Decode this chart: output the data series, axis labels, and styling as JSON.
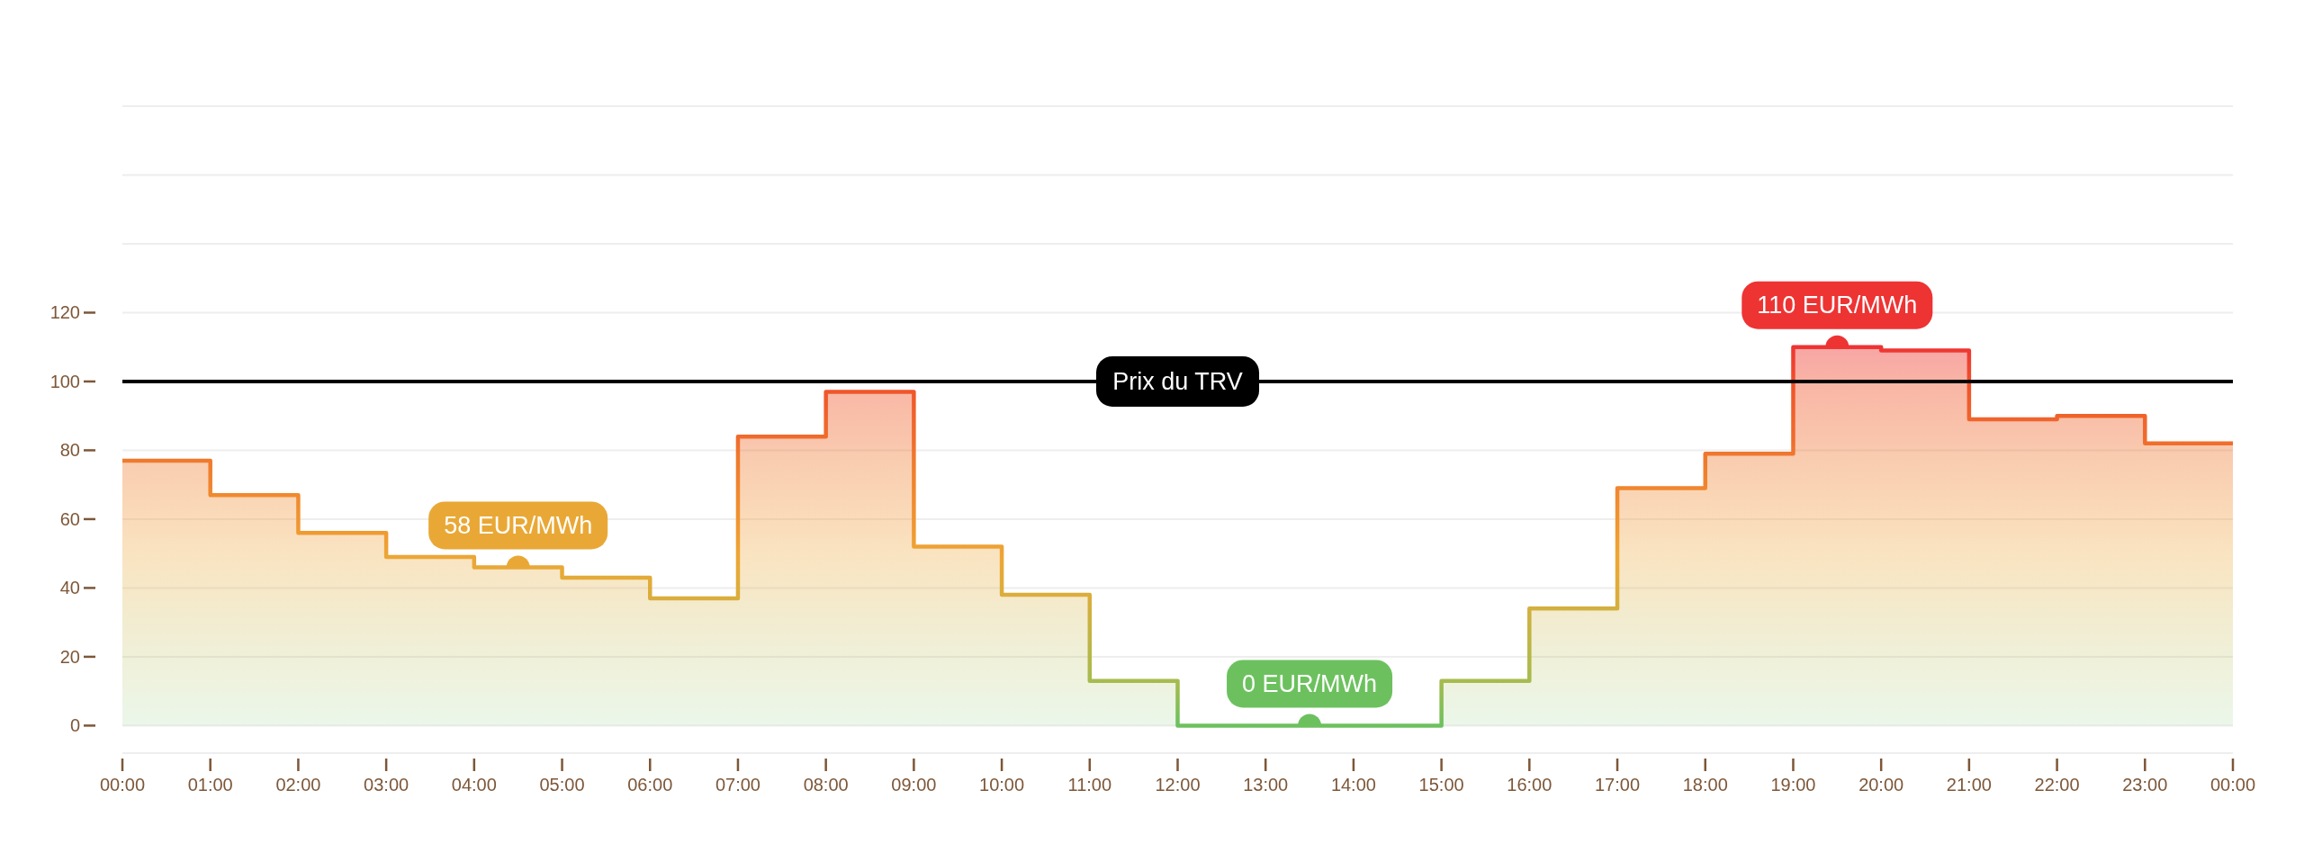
{
  "chart_data": {
    "type": "area",
    "x": [
      0,
      1,
      1,
      2,
      2,
      3,
      3,
      4,
      4,
      5,
      5,
      6,
      6,
      7,
      7,
      8,
      8,
      9,
      9,
      10,
      10,
      11,
      11,
      12,
      12,
      13,
      13,
      14,
      14,
      15,
      15,
      16,
      16,
      17,
      17,
      18,
      18,
      19,
      19,
      20,
      20,
      21,
      21,
      22,
      22,
      23,
      23,
      24
    ],
    "values": [
      77,
      77,
      67,
      67,
      56,
      56,
      49,
      49,
      46,
      46,
      43,
      43,
      37,
      37,
      84,
      84,
      97,
      97,
      52,
      52,
      38,
      38,
      13,
      13,
      0,
      0,
      0,
      0,
      0,
      0,
      13,
      13,
      34,
      34,
      69,
      69,
      79,
      79,
      110,
      110,
      109,
      109,
      89,
      89,
      90,
      90,
      82,
      82
    ],
    "colors": [
      "#ef7a2e",
      "#ef7a2e",
      "#f0892f",
      "#f0892f",
      "#f09a32",
      "#f09a32",
      "#eca635",
      "#eca635",
      "#e9a836",
      "#e9a836",
      "#e3ab38",
      "#e3ab38",
      "#d9ae3c",
      "#d9ae3c",
      "#f06a2c",
      "#f06a2c",
      "#f0562a",
      "#f0562a",
      "#eea234",
      "#eea234",
      "#dbad3c",
      "#dbad3c",
      "#a6bb4e",
      "#a6bb4e",
      "#6cc15e",
      "#6cc15e",
      "#6cc15e",
      "#6cc15e",
      "#6cc15e",
      "#6cc15e",
      "#a6bb4e",
      "#a6bb4e",
      "#d2b03f",
      "#d2b03f",
      "#f0862f",
      "#f0862f",
      "#ef772e",
      "#ef772e",
      "#ee3333",
      "#ee3333",
      "#ef3832",
      "#ef3832",
      "#f0642c",
      "#f0642c",
      "#f0622c",
      "#f0622c",
      "#f06e2d",
      "#f06e2d"
    ],
    "xlim": [
      0,
      24
    ],
    "xticks": [
      {
        "value": 0,
        "label": "00:00"
      },
      {
        "value": 1,
        "label": "01:00"
      },
      {
        "value": 2,
        "label": "02:00"
      },
      {
        "value": 3,
        "label": "03:00"
      },
      {
        "value": 4,
        "label": "04:00"
      },
      {
        "value": 5,
        "label": "05:00"
      },
      {
        "value": 6,
        "label": "06:00"
      },
      {
        "value": 7,
        "label": "07:00"
      },
      {
        "value": 8,
        "label": "08:00"
      },
      {
        "value": 9,
        "label": "09:00"
      },
      {
        "value": 10,
        "label": "10:00"
      },
      {
        "value": 11,
        "label": "11:00"
      },
      {
        "value": 12,
        "label": "12:00"
      },
      {
        "value": 13,
        "label": "13:00"
      },
      {
        "value": 14,
        "label": "14:00"
      },
      {
        "value": 15,
        "label": "15:00"
      },
      {
        "value": 16,
        "label": "16:00"
      },
      {
        "value": 17,
        "label": "17:00"
      },
      {
        "value": 18,
        "label": "18:00"
      },
      {
        "value": 19,
        "label": "19:00"
      },
      {
        "value": 20,
        "label": "20:00"
      },
      {
        "value": 21,
        "label": "21:00"
      },
      {
        "value": 22,
        "label": "22:00"
      },
      {
        "value": 23,
        "label": "23:00"
      },
      {
        "value": 24,
        "label": "00:00"
      }
    ],
    "ylim": [
      -8,
      180
    ],
    "yticks": [
      0,
      20,
      40,
      60,
      80,
      100,
      120,
      {
        "value": 140,
        "label": null
      },
      {
        "value": 160,
        "label": null
      },
      {
        "value": 180,
        "label": null
      }
    ],
    "grid": "y",
    "ref_lines": [
      {
        "axis": "y",
        "value": 100,
        "label": "Prix du TRV",
        "color": "#000000"
      }
    ],
    "annotations": [
      {
        "text": "58 EUR/MWh",
        "x": 4.5,
        "y": 46
      },
      {
        "text": "0 EUR/MWh",
        "x": 13.5,
        "y": 0
      },
      {
        "text": "110 EUR/MWh",
        "x": 19.5,
        "y": 110
      }
    ]
  }
}
